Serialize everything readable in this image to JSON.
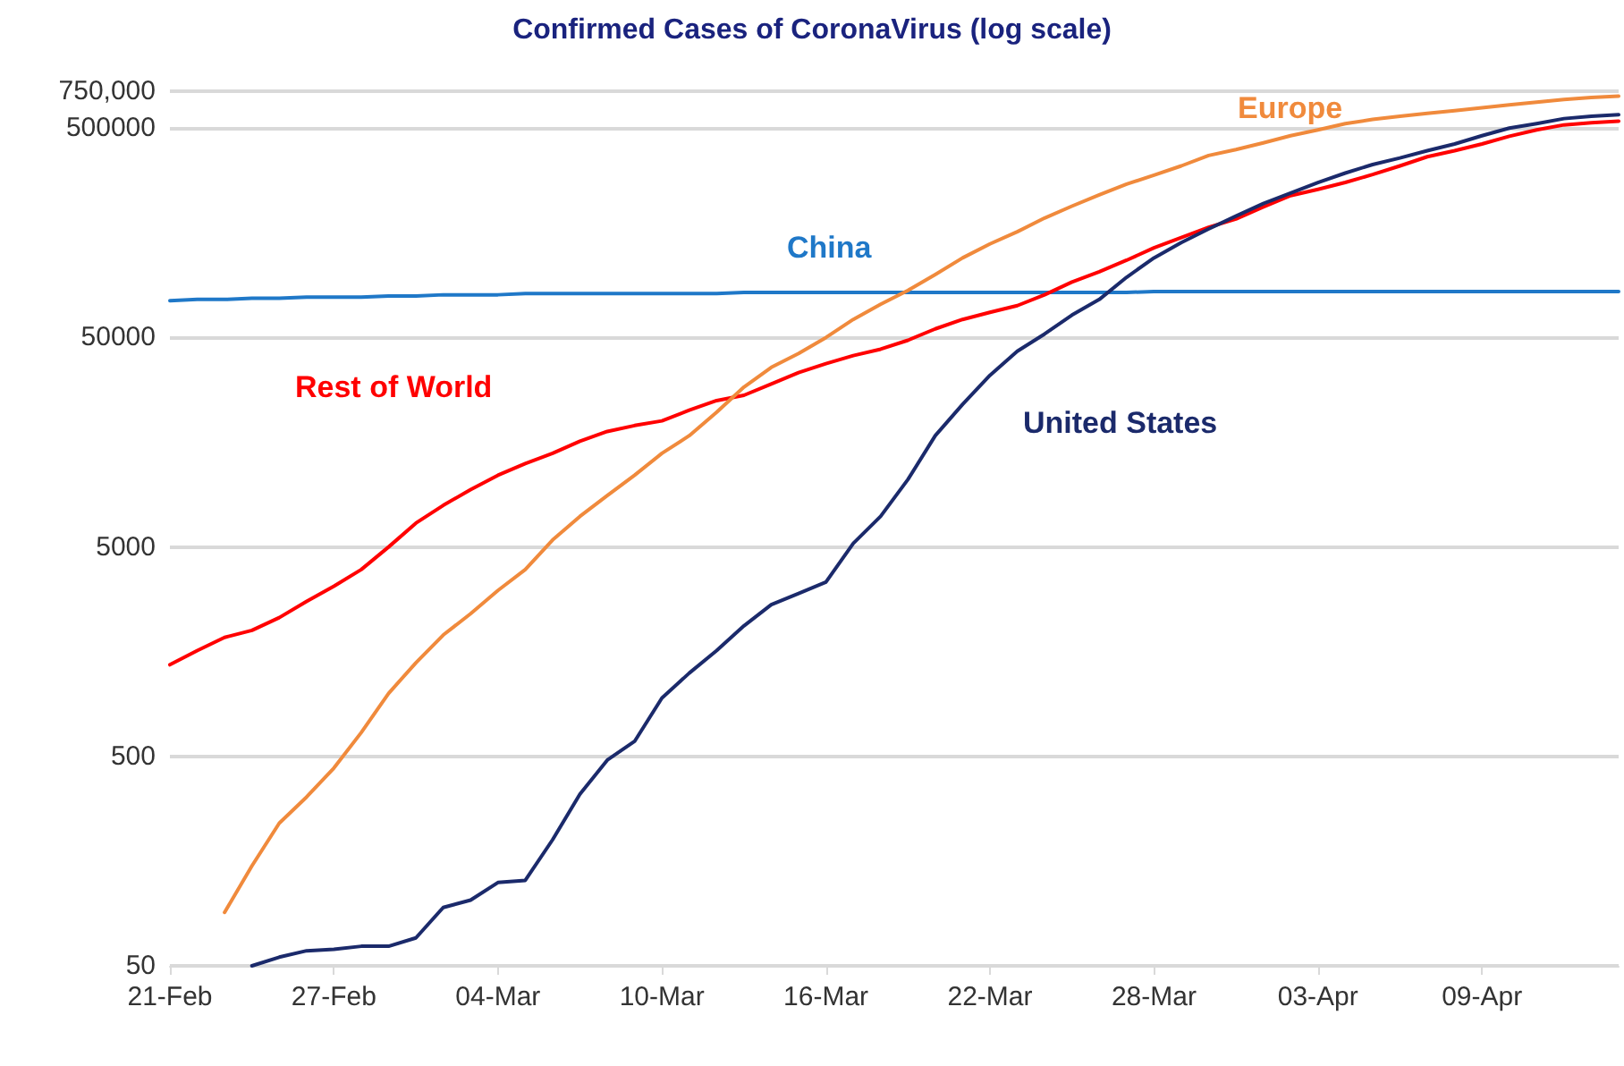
{
  "chart_data": {
    "type": "line",
    "title": "Confirmed Cases of CoronaVirus (log scale)",
    "categories": [
      "21-Feb",
      null,
      null,
      null,
      null,
      null,
      "27-Feb",
      null,
      null,
      null,
      null,
      null,
      "04-Mar",
      null,
      null,
      null,
      null,
      null,
      "10-Mar",
      null,
      null,
      null,
      null,
      null,
      "16-Mar",
      null,
      null,
      null,
      null,
      null,
      "22-Mar",
      null,
      null,
      null,
      null,
      null,
      "28-Mar",
      null,
      null,
      null,
      null,
      null,
      "03-Apr",
      null,
      null,
      null,
      null,
      null,
      "09-Apr",
      null,
      null,
      null,
      null,
      null
    ],
    "series": [
      {
        "name": "China",
        "color": "#1f78c8",
        "values": [
          75000,
          76000,
          76000,
          77000,
          77000,
          78000,
          78000,
          78000,
          79000,
          79000,
          80000,
          80000,
          80000,
          81000,
          81000,
          81000,
          81000,
          81000,
          81000,
          81000,
          81000,
          82000,
          82000,
          82000,
          82000,
          82000,
          82000,
          82000,
          82000,
          82000,
          82000,
          82000,
          82000,
          82000,
          82000,
          82000,
          83000,
          83000,
          83000,
          83000,
          83000,
          83000,
          83000,
          83000,
          83000,
          83000,
          83000,
          83000,
          83000,
          83000,
          83000,
          83000,
          83000,
          83000
        ]
      },
      {
        "name": "Rest of World",
        "color": "#ff0000",
        "values": [
          1370,
          1600,
          1850,
          2000,
          2300,
          2750,
          3250,
          3900,
          5000,
          6500,
          7900,
          9400,
          11000,
          12500,
          14000,
          16000,
          17800,
          19000,
          20000,
          22500,
          25000,
          26500,
          30000,
          34000,
          37500,
          41000,
          44000,
          48500,
          55000,
          61000,
          66000,
          71000,
          80000,
          92000,
          103000,
          117000,
          134000,
          150000,
          168000,
          184000,
          210000,
          238000,
          255000,
          275000,
          300000,
          330000,
          365000,
          390000,
          420000,
          457000,
          490000,
          518000,
          530000,
          540000
        ]
      },
      {
        "name": "Europe",
        "color": "#f08a3c",
        "values": [
          null,
          null,
          90,
          150,
          240,
          320,
          440,
          650,
          1000,
          1400,
          1900,
          2400,
          3100,
          3900,
          5400,
          7000,
          8800,
          11000,
          14000,
          17000,
          22000,
          29000,
          36000,
          42000,
          50000,
          61000,
          72000,
          84000,
          100000,
          120000,
          140000,
          160000,
          186000,
          212000,
          240000,
          270000,
          298000,
          330000,
          370000,
          395000,
          425000,
          460000,
          490000,
          525000,
          550000,
          570000,
          588000,
          605000,
          625000,
          645000,
          665000,
          685000,
          700000,
          710000
        ]
      },
      {
        "name": "United States",
        "color": "#1b2a6b",
        "values": [
          null,
          null,
          null,
          50,
          55,
          59,
          60,
          62,
          62,
          68,
          95,
          103,
          125,
          128,
          200,
          330,
          480,
          590,
          950,
          1250,
          1600,
          2100,
          2650,
          3000,
          3400,
          5200,
          7000,
          10500,
          17000,
          24000,
          33000,
          43000,
          52000,
          64000,
          76000,
          97000,
          120000,
          142000,
          165000,
          190000,
          218000,
          245000,
          275000,
          305000,
          335000,
          360000,
          390000,
          420000,
          460000,
          500000,
          525000,
          555000,
          570000,
          580000
        ]
      }
    ],
    "ylim": [
      50,
      750000
    ],
    "yticks": [
      50,
      500,
      5000,
      50000,
      500000,
      {
        "value": 750000,
        "label": "750,000"
      }
    ],
    "log": true,
    "grid": "y",
    "legend": false,
    "marker": "none",
    "line_style": "solid"
  }
}
